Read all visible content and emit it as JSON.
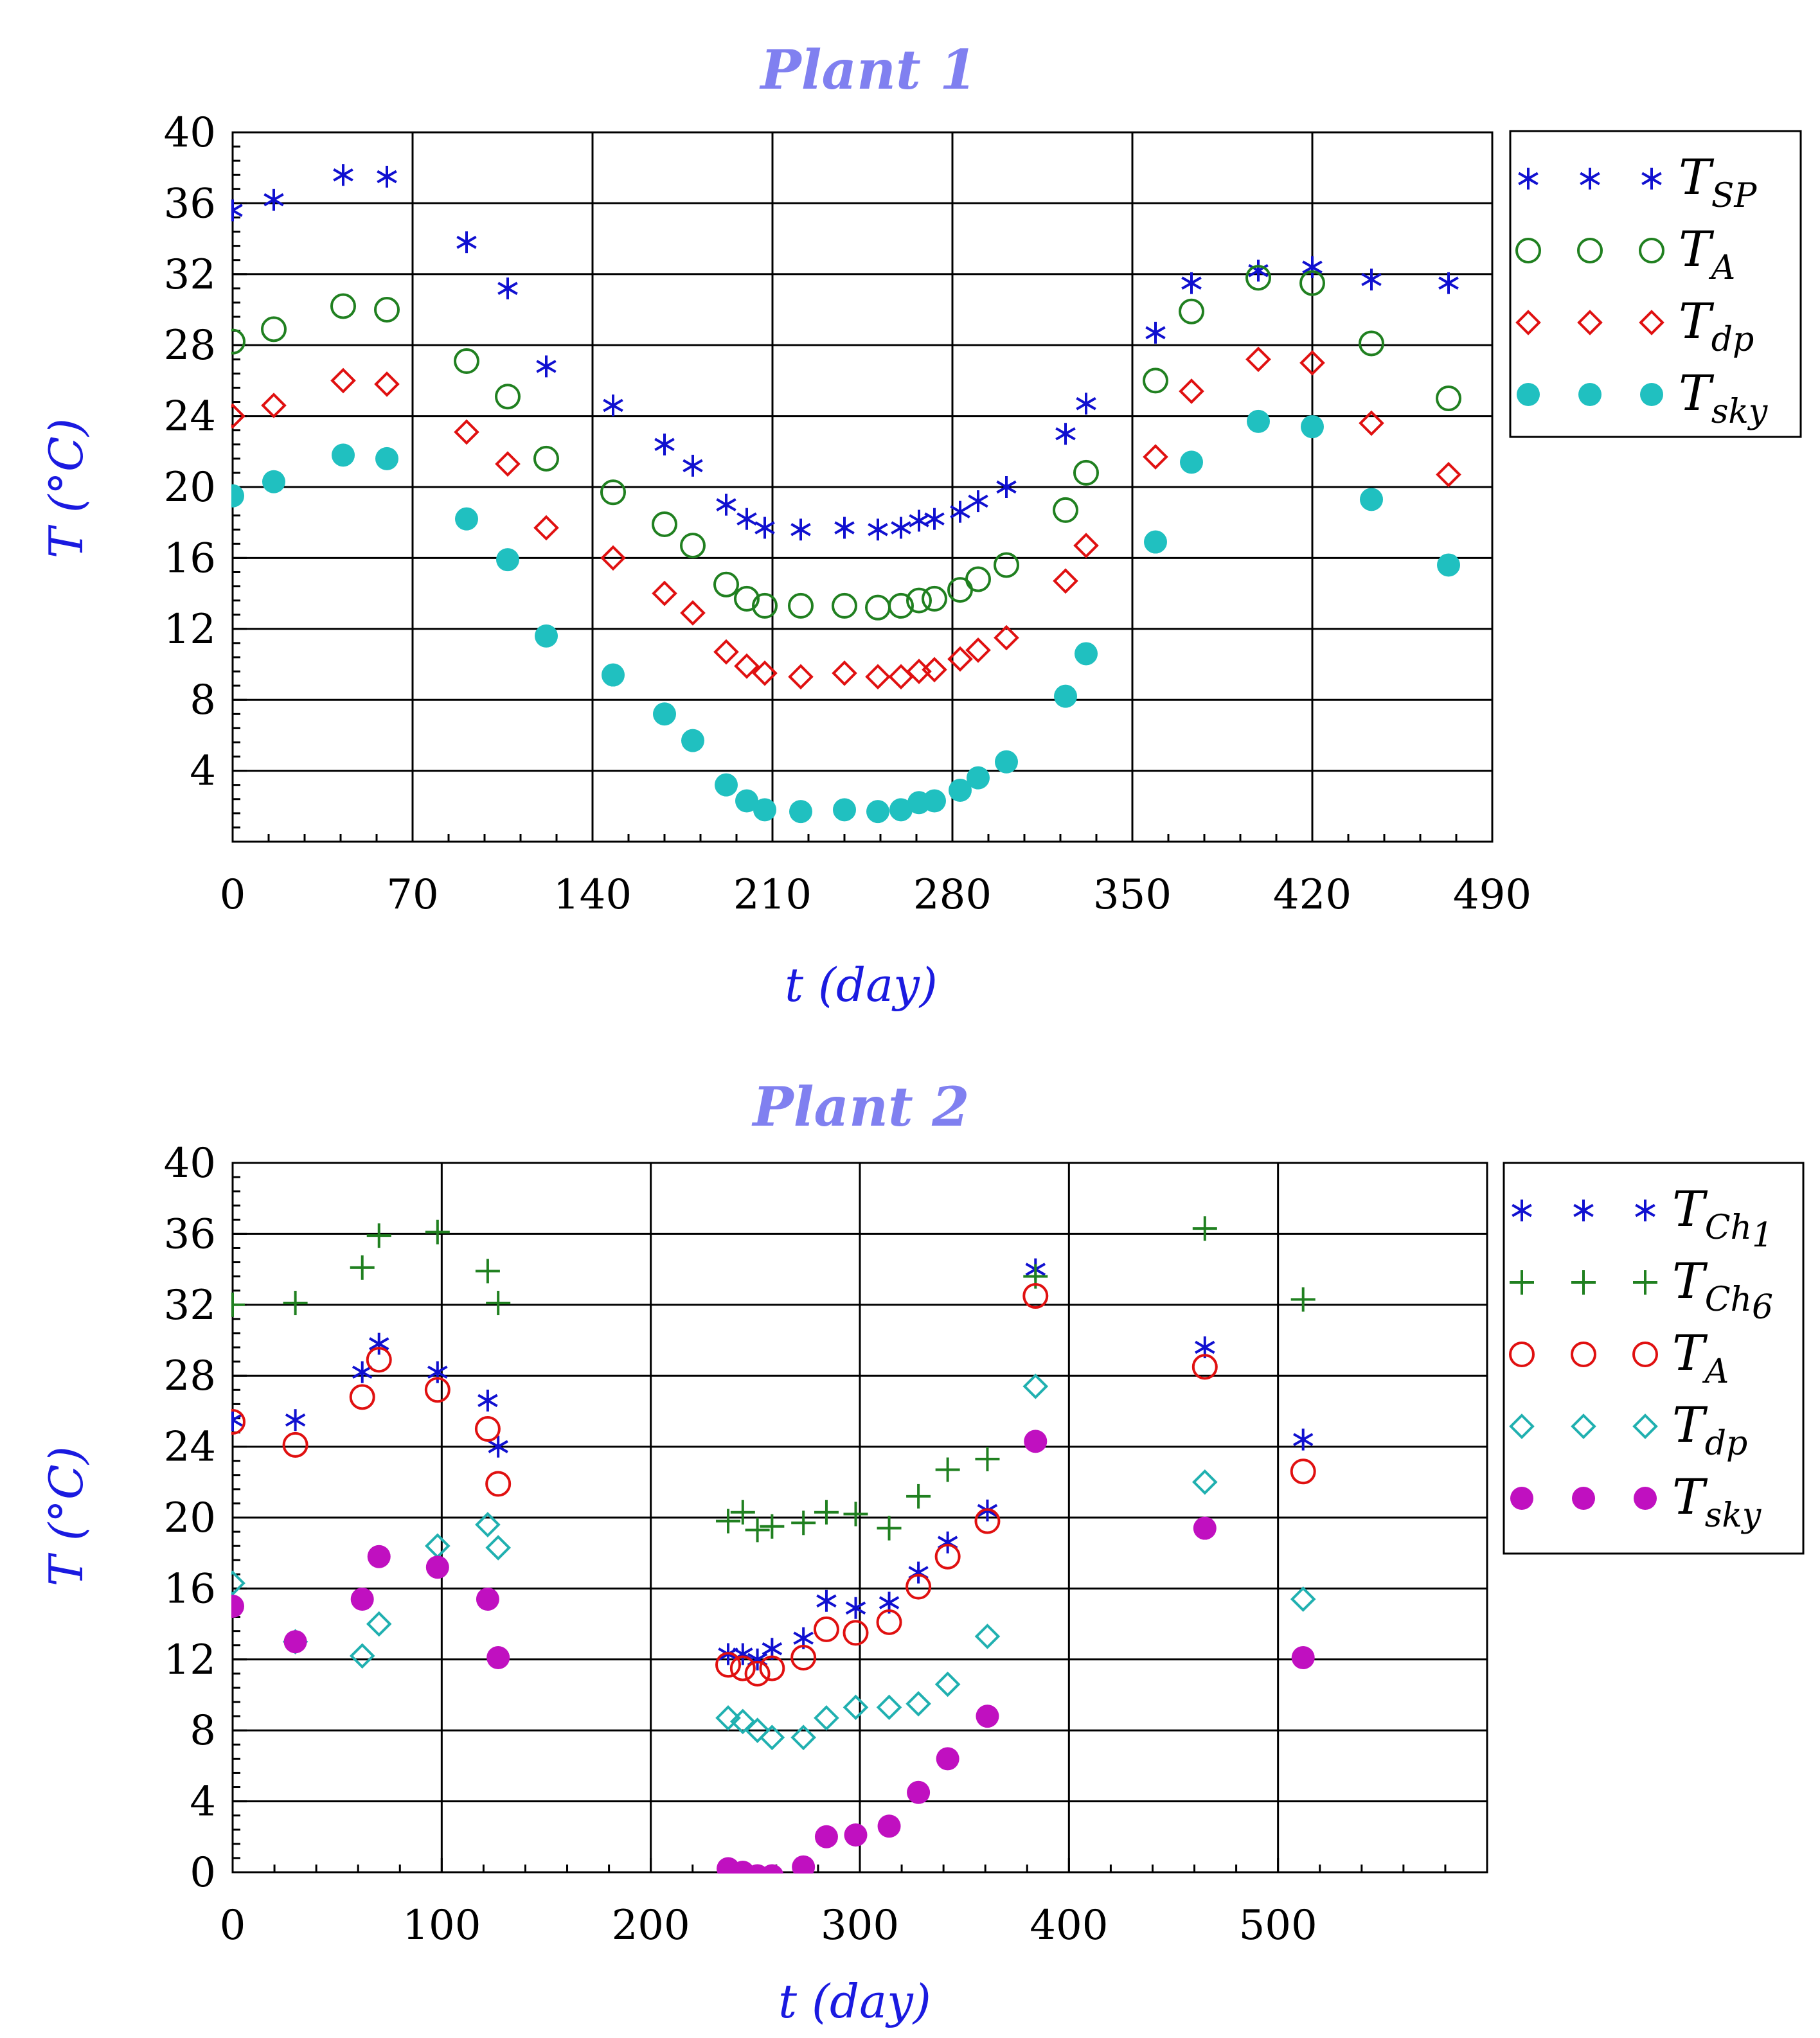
{
  "chart_data": [
    {
      "type": "scatter",
      "title": "Plant 1",
      "xlabel": "t (day)",
      "ylabel": "T (°C)",
      "xlim": [
        0,
        490
      ],
      "ylim": [
        0,
        40
      ],
      "xticks": [
        0,
        70,
        140,
        210,
        280,
        350,
        420,
        490
      ],
      "yticks": [
        4,
        8,
        12,
        16,
        20,
        24,
        28,
        32,
        36,
        40
      ],
      "grid": true,
      "legend_position": "right",
      "series": [
        {
          "name": "T_SP",
          "label_main": "T",
          "label_sub": "SP",
          "marker": "asterisk",
          "color": "#1010d0",
          "x": [
            0,
            16,
            43,
            60,
            91,
            107,
            122,
            148,
            168,
            179,
            192,
            200,
            207,
            221,
            238,
            251,
            260,
            267,
            273,
            283,
            290,
            301,
            324,
            332,
            359,
            373,
            399,
            420,
            443,
            473
          ],
          "y": [
            35.6,
            36.2,
            37.6,
            37.5,
            33.8,
            31.2,
            26.8,
            24.6,
            22.4,
            21.2,
            19.0,
            18.2,
            17.7,
            17.6,
            17.7,
            17.6,
            17.7,
            18.1,
            18.2,
            18.6,
            19.2,
            20.0,
            23.0,
            24.7,
            28.7,
            31.5,
            32.2,
            32.4,
            31.7,
            31.5
          ]
        },
        {
          "name": "T_A",
          "label_main": "T",
          "label_sub": "A",
          "marker": "open-circle",
          "color": "#208020",
          "x": [
            0,
            16,
            43,
            60,
            91,
            107,
            122,
            148,
            168,
            179,
            192,
            200,
            207,
            221,
            238,
            251,
            260,
            267,
            273,
            283,
            290,
            301,
            324,
            332,
            359,
            373,
            399,
            420,
            443,
            473
          ],
          "y": [
            28.2,
            28.9,
            30.2,
            30.0,
            27.1,
            25.1,
            21.6,
            19.7,
            17.9,
            16.7,
            14.5,
            13.7,
            13.3,
            13.3,
            13.3,
            13.2,
            13.3,
            13.6,
            13.7,
            14.2,
            14.8,
            15.6,
            18.7,
            20.8,
            26.0,
            29.9,
            31.8,
            31.5,
            28.1,
            25.0
          ]
        },
        {
          "name": "T_dp",
          "label_main": "T",
          "label_sub": "dp",
          "marker": "open-diamond",
          "color": "#e01010",
          "x": [
            0,
            16,
            43,
            60,
            91,
            107,
            122,
            148,
            168,
            179,
            192,
            200,
            207,
            221,
            238,
            251,
            260,
            267,
            273,
            283,
            290,
            301,
            324,
            332,
            359,
            373,
            399,
            420,
            443,
            473
          ],
          "y": [
            24.0,
            24.6,
            26.0,
            25.8,
            23.1,
            21.3,
            17.7,
            16.0,
            14.0,
            12.9,
            10.7,
            9.9,
            9.5,
            9.3,
            9.5,
            9.3,
            9.3,
            9.6,
            9.7,
            10.3,
            10.8,
            11.5,
            14.7,
            16.7,
            21.7,
            25.4,
            27.2,
            27.0,
            23.6,
            20.7
          ]
        },
        {
          "name": "T_sky",
          "label_main": "T",
          "label_sub": "sky",
          "marker": "filled-circle",
          "color": "#20c0c0",
          "x": [
            0,
            16,
            43,
            60,
            91,
            107,
            122,
            148,
            168,
            179,
            192,
            200,
            207,
            221,
            238,
            251,
            260,
            267,
            273,
            283,
            290,
            301,
            324,
            332,
            359,
            373,
            399,
            420,
            443,
            473
          ],
          "y": [
            19.5,
            20.3,
            21.8,
            21.6,
            18.2,
            15.9,
            11.6,
            9.4,
            7.2,
            5.7,
            3.2,
            2.3,
            1.8,
            1.7,
            1.8,
            1.7,
            1.8,
            2.2,
            2.3,
            2.9,
            3.6,
            4.5,
            8.2,
            10.6,
            16.9,
            21.4,
            23.7,
            23.4,
            19.3,
            15.6
          ]
        }
      ]
    },
    {
      "type": "scatter",
      "title": "Plant 2",
      "xlabel": "t (day)",
      "ylabel": "T (°C)",
      "xlim": [
        0,
        600
      ],
      "ylim": [
        0,
        40
      ],
      "xticks": [
        0,
        100,
        200,
        300,
        400,
        500
      ],
      "yticks": [
        0,
        4,
        8,
        12,
        16,
        20,
        24,
        28,
        32,
        36,
        40
      ],
      "grid": true,
      "legend_position": "right",
      "series": [
        {
          "name": "T_Ch1",
          "label_main": "T",
          "label_sub": "Ch",
          "label_subsub": "1",
          "marker": "asterisk",
          "color": "#1010d0",
          "x": [
            0,
            30,
            62,
            70,
            98,
            122,
            127,
            237,
            244,
            251,
            258,
            273,
            284,
            298,
            314,
            328,
            342,
            361,
            384,
            465,
            512
          ],
          "y": [
            25.5,
            25.5,
            28.2,
            29.8,
            28.2,
            26.6,
            24.0,
            12.3,
            12.3,
            12.0,
            12.6,
            13.2,
            15.3,
            14.9,
            15.2,
            16.9,
            18.6,
            20.4,
            34.0,
            29.6,
            24.4
          ]
        },
        {
          "name": "T_Ch6",
          "label_main": "T",
          "label_sub": "Ch",
          "label_subsub": "6",
          "marker": "plus",
          "color": "#208020",
          "x": [
            0,
            30,
            62,
            70,
            98,
            122,
            127,
            237,
            244,
            251,
            258,
            273,
            284,
            298,
            314,
            328,
            342,
            361,
            384,
            465,
            512
          ],
          "y": [
            32.0,
            32.1,
            34.1,
            35.9,
            36.1,
            33.9,
            32.1,
            19.8,
            20.3,
            19.3,
            19.5,
            19.7,
            20.3,
            20.2,
            19.4,
            21.2,
            22.7,
            23.3,
            33.6,
            36.3,
            32.3
          ]
        },
        {
          "name": "T_A",
          "label_main": "T",
          "label_sub": "A",
          "marker": "open-circle",
          "color": "#e01010",
          "x": [
            0,
            30,
            62,
            70,
            98,
            122,
            127,
            237,
            244,
            251,
            258,
            273,
            284,
            298,
            314,
            328,
            342,
            361,
            384,
            465,
            512
          ],
          "y": [
            25.4,
            24.1,
            26.8,
            28.9,
            27.2,
            25.0,
            21.9,
            11.7,
            11.5,
            11.2,
            11.5,
            12.1,
            13.7,
            13.5,
            14.1,
            16.1,
            17.8,
            19.8,
            32.5,
            28.5,
            22.6
          ]
        },
        {
          "name": "T_dp",
          "label_main": "T",
          "label_sub": "dp",
          "marker": "open-diamond",
          "color": "#20b0b0",
          "x": [
            0,
            30,
            62,
            70,
            98,
            122,
            127,
            237,
            244,
            251,
            258,
            273,
            284,
            298,
            314,
            328,
            342,
            361,
            384,
            465,
            512
          ],
          "y": [
            16.3,
            13.0,
            12.2,
            14.0,
            18.4,
            19.6,
            18.3,
            8.7,
            8.5,
            8.0,
            7.6,
            7.6,
            8.7,
            9.3,
            9.3,
            9.5,
            10.6,
            13.3,
            27.4,
            22.0,
            15.4
          ]
        },
        {
          "name": "T_sky",
          "label_main": "T",
          "label_sub": "sky",
          "marker": "filled-circle",
          "color": "#c010c0",
          "x": [
            0,
            30,
            62,
            70,
            98,
            122,
            127,
            237,
            244,
            251,
            258,
            273,
            284,
            298,
            314,
            328,
            342,
            361,
            384,
            465,
            512
          ],
          "y": [
            15.0,
            13.0,
            15.4,
            17.8,
            17.2,
            15.4,
            12.1,
            0.2,
            0.0,
            -0.2,
            -0.2,
            0.3,
            2.0,
            2.1,
            2.6,
            4.5,
            6.4,
            8.8,
            24.3,
            19.4,
            12.1
          ]
        }
      ]
    }
  ]
}
